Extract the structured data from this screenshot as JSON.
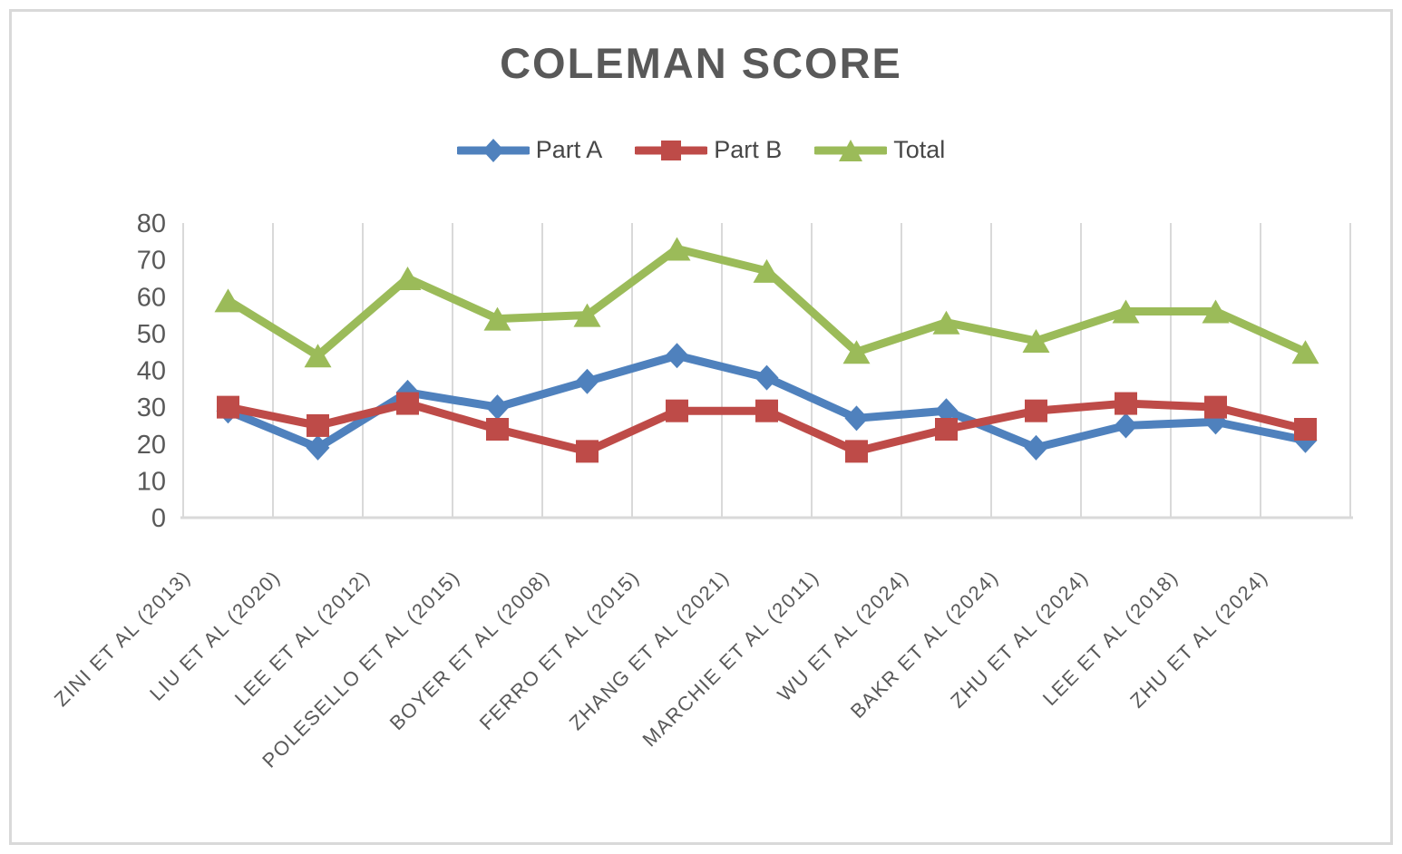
{
  "page": {
    "background": "#FFFFFF",
    "frame_border_color": "#D9D9D9"
  },
  "chart_data": {
    "type": "line",
    "title": "COLEMAN SCORE",
    "categories": [
      "ZINI ET AL (2013)",
      "LIU ET AL (2020)",
      "LEE ET AL (2012)",
      "POLESELLO ET AL (2015)",
      "BOYER ET AL (2008)",
      "FERRO ET AL (2015)",
      "ZHANG ET AL (2021)",
      "MARCHIE ET AL (2011)",
      "WU ET AL (2024)",
      "BAKR ET AL (2024)",
      "ZHU ET AL (2024)",
      "LEE ET AL (2018)",
      "ZHU ET AL (2024)"
    ],
    "series": [
      {
        "name": "Part A",
        "marker": "diamond",
        "color": "#4F81BD",
        "values": [
          29,
          19,
          34,
          30,
          37,
          44,
          38,
          27,
          29,
          19,
          25,
          26,
          21
        ]
      },
      {
        "name": "Part B",
        "marker": "square",
        "color": "#BE4B48",
        "values": [
          30,
          25,
          31,
          24,
          18,
          29,
          29,
          18,
          24,
          29,
          31,
          30,
          24
        ]
      },
      {
        "name": "Total",
        "marker": "triangle",
        "color": "#9BBB59",
        "values": [
          59,
          44,
          65,
          54,
          55,
          73,
          67,
          45,
          53,
          48,
          56,
          56,
          45
        ]
      }
    ],
    "xlabel": "",
    "ylabel": "",
    "ylim": [
      0,
      80
    ],
    "yticks": [
      0,
      10,
      20,
      30,
      40,
      50,
      60,
      70,
      80
    ],
    "grid": "vertical-category-gridlines",
    "legend_position": "top",
    "axis_text_color": "#595959",
    "legend_text_color": "#474747",
    "gridline_color": "#D9D9D9"
  }
}
